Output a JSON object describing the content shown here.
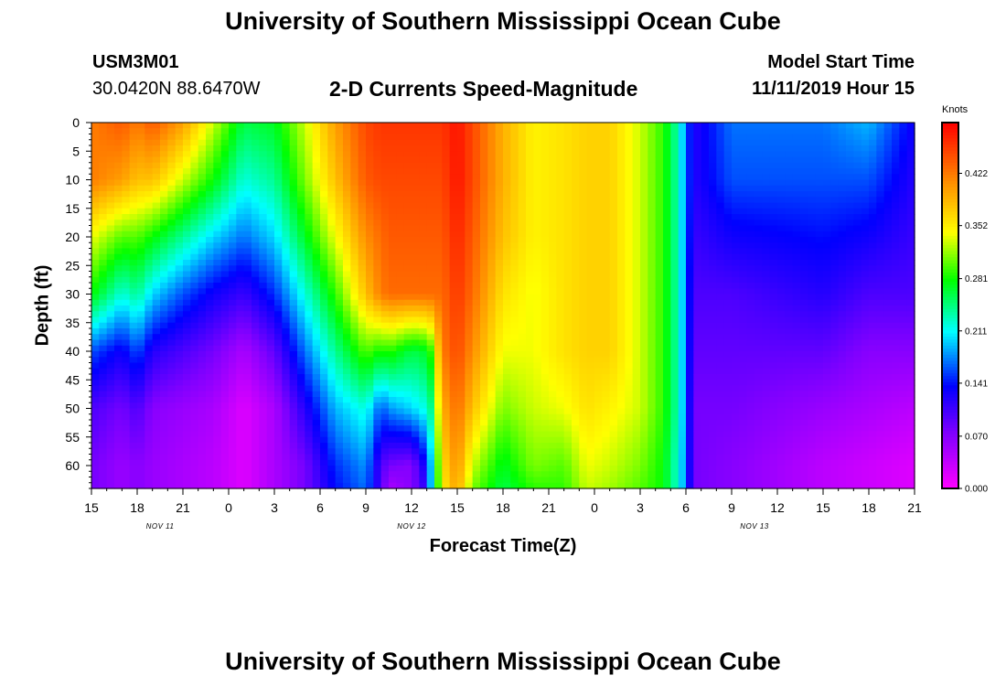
{
  "header": {
    "title": "University of Southern Mississippi Ocean Cube",
    "station_id": "USM3M01",
    "station_coords": "30.0420N 88.6470W",
    "product_title": "2-D Currents Speed-Magnitude",
    "model_start_label": "Model Start Time",
    "model_start_value": "11/11/2019 Hour 15"
  },
  "footer": {
    "title": "University of Southern Mississippi Ocean Cube"
  },
  "chart_data": {
    "type": "heatmap",
    "title": "2-D Currents Speed-Magnitude",
    "xlabel": "Forecast Time(Z)",
    "ylabel": "Depth (ft)",
    "x_unit": "forecast hour from 11/11/2019 15Z",
    "xlim": [
      0,
      54
    ],
    "ylim": [
      0,
      64
    ],
    "y_inverted": true,
    "x_ticks": [
      {
        "hour": 0,
        "label": "15"
      },
      {
        "hour": 3,
        "label": "18"
      },
      {
        "hour": 6,
        "label": "21"
      },
      {
        "hour": 9,
        "label": "0"
      },
      {
        "hour": 12,
        "label": "3"
      },
      {
        "hour": 15,
        "label": "6"
      },
      {
        "hour": 18,
        "label": "9"
      },
      {
        "hour": 21,
        "label": "12"
      },
      {
        "hour": 24,
        "label": "15"
      },
      {
        "hour": 27,
        "label": "18"
      },
      {
        "hour": 30,
        "label": "21"
      },
      {
        "hour": 33,
        "label": "0"
      },
      {
        "hour": 36,
        "label": "3"
      },
      {
        "hour": 39,
        "label": "6"
      },
      {
        "hour": 42,
        "label": "9"
      },
      {
        "hour": 45,
        "label": "12"
      },
      {
        "hour": 48,
        "label": "15"
      },
      {
        "hour": 51,
        "label": "18"
      },
      {
        "hour": 54,
        "label": "21"
      }
    ],
    "y_ticks": [
      0,
      5,
      10,
      15,
      20,
      25,
      30,
      35,
      40,
      45,
      50,
      55,
      60
    ],
    "date_labels": [
      {
        "hour": 4.5,
        "label": "NOV 11"
      },
      {
        "hour": 21,
        "label": "NOV 12"
      },
      {
        "hour": 43.5,
        "label": "NOV 13"
      }
    ],
    "colorbar": {
      "units": "Knots",
      "min": 0.0,
      "max": 0.49,
      "ticks": [
        0.0,
        0.07,
        0.141,
        0.211,
        0.281,
        0.352,
        0.422
      ],
      "tick_labels": [
        "0.000",
        "0.070",
        "0.141",
        "0.211",
        "0.281",
        "0.352",
        "0.422"
      ]
    },
    "speed_by_hour": {
      "hours": [
        0,
        2,
        3,
        4,
        6,
        8,
        10,
        12,
        14,
        16,
        18,
        19,
        19.5,
        21,
        22,
        22.2,
        23,
        24,
        25,
        27,
        29,
        31,
        32.5,
        34,
        36,
        37.5,
        38.5,
        39,
        39.5,
        42,
        48,
        51,
        54
      ],
      "depths_ft": [
        0,
        10,
        20,
        30,
        40,
        50,
        60,
        64
      ],
      "values_knots": [
        [
          0.42,
          0.42,
          0.34,
          0.28,
          0.16,
          0.1,
          0.08,
          0.08
        ],
        [
          0.44,
          0.4,
          0.3,
          0.22,
          0.13,
          0.08,
          0.06,
          0.06
        ],
        [
          0.42,
          0.38,
          0.3,
          0.24,
          0.16,
          0.1,
          0.07,
          0.07
        ],
        [
          0.44,
          0.38,
          0.28,
          0.2,
          0.12,
          0.07,
          0.06,
          0.06
        ],
        [
          0.4,
          0.33,
          0.24,
          0.16,
          0.1,
          0.06,
          0.05,
          0.05
        ],
        [
          0.33,
          0.28,
          0.2,
          0.13,
          0.08,
          0.05,
          0.04,
          0.04
        ],
        [
          0.26,
          0.22,
          0.17,
          0.11,
          0.05,
          0.02,
          0.02,
          0.02
        ],
        [
          0.27,
          0.24,
          0.2,
          0.15,
          0.09,
          0.05,
          0.05,
          0.05
        ],
        [
          0.33,
          0.31,
          0.27,
          0.22,
          0.17,
          0.12,
          0.08,
          0.08
        ],
        [
          0.4,
          0.38,
          0.34,
          0.29,
          0.24,
          0.19,
          0.15,
          0.14
        ],
        [
          0.45,
          0.44,
          0.41,
          0.38,
          0.3,
          0.22,
          0.18,
          0.17
        ],
        [
          0.46,
          0.45,
          0.43,
          0.42,
          0.28,
          0.16,
          0.1,
          0.1
        ],
        [
          0.46,
          0.45,
          0.44,
          0.43,
          0.29,
          0.18,
          0.08,
          0.05
        ],
        [
          0.46,
          0.45,
          0.44,
          0.43,
          0.26,
          0.2,
          0.07,
          0.07
        ],
        [
          0.46,
          0.45,
          0.44,
          0.43,
          0.27,
          0.22,
          0.14,
          0.12
        ],
        [
          0.46,
          0.45,
          0.44,
          0.43,
          0.28,
          0.23,
          0.18,
          0.18
        ],
        [
          0.46,
          0.45,
          0.44,
          0.43,
          0.42,
          0.39,
          0.36,
          0.35
        ],
        [
          0.48,
          0.48,
          0.47,
          0.46,
          0.45,
          0.43,
          0.41,
          0.4
        ],
        [
          0.45,
          0.45,
          0.44,
          0.43,
          0.41,
          0.38,
          0.33,
          0.31
        ],
        [
          0.39,
          0.39,
          0.38,
          0.36,
          0.34,
          0.31,
          0.27,
          0.26
        ],
        [
          0.35,
          0.35,
          0.35,
          0.34,
          0.34,
          0.33,
          0.31,
          0.29
        ],
        [
          0.36,
          0.36,
          0.36,
          0.36,
          0.36,
          0.34,
          0.3,
          0.29
        ],
        [
          0.37,
          0.37,
          0.37,
          0.37,
          0.37,
          0.36,
          0.34,
          0.33
        ],
        [
          0.37,
          0.37,
          0.37,
          0.37,
          0.37,
          0.35,
          0.33,
          0.32
        ],
        [
          0.33,
          0.33,
          0.33,
          0.33,
          0.33,
          0.33,
          0.31,
          0.3
        ],
        [
          0.29,
          0.29,
          0.29,
          0.29,
          0.29,
          0.29,
          0.28,
          0.28
        ],
        [
          0.23,
          0.23,
          0.23,
          0.23,
          0.23,
          0.23,
          0.22,
          0.22
        ],
        [
          0.17,
          0.17,
          0.17,
          0.17,
          0.17,
          0.17,
          0.17,
          0.17
        ],
        [
          0.12,
          0.12,
          0.11,
          0.1,
          0.09,
          0.08,
          0.08,
          0.08
        ],
        [
          0.17,
          0.16,
          0.13,
          0.1,
          0.09,
          0.08,
          0.07,
          0.07
        ],
        [
          0.17,
          0.16,
          0.14,
          0.12,
          0.09,
          0.06,
          0.04,
          0.04
        ],
        [
          0.19,
          0.16,
          0.13,
          0.1,
          0.07,
          0.05,
          0.03,
          0.03
        ],
        [
          0.13,
          0.12,
          0.11,
          0.1,
          0.07,
          0.04,
          0.02,
          0.02
        ]
      ]
    }
  }
}
